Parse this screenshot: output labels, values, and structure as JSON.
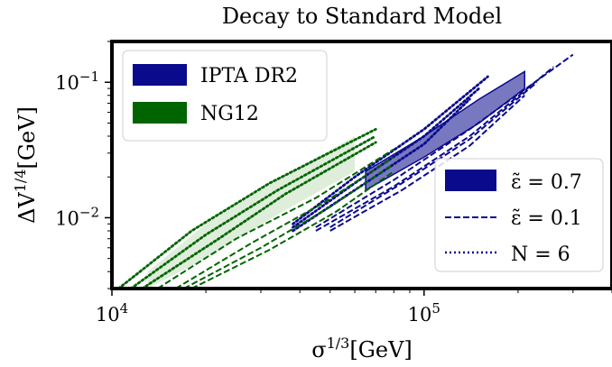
{
  "chart_data": {
    "type": "line",
    "title": "Decay to Standard Model",
    "xlabel": "σ^{1/3}[GeV]",
    "ylabel": "ΔV^{1/4}[GeV]",
    "xscale": "log",
    "yscale": "log",
    "xlim": [
      10000,
      400000
    ],
    "ylim": [
      0.003,
      0.2
    ],
    "grid": false,
    "x_ticks": [
      {
        "value": 10000,
        "base": "10",
        "exp": "4"
      },
      {
        "value": 100000,
        "base": "10",
        "exp": "5"
      }
    ],
    "y_ticks": [
      {
        "value": 0.1,
        "base": "10",
        "exp": "−1"
      },
      {
        "value": 0.01,
        "base": "10",
        "exp": "−2"
      }
    ],
    "colors": {
      "IPTA": "#0a0a8c",
      "NG12": "#006400"
    },
    "legend_datasets": {
      "placement": "top-left",
      "entries": [
        {
          "label": "IPTA DR2",
          "color": "#0a0a8c"
        },
        {
          "label": "NG12",
          "color": "#006400"
        }
      ]
    },
    "legend_styles": {
      "placement": "center-right",
      "entries": [
        {
          "label": "ε̃ = 0.7",
          "style": "filled"
        },
        {
          "label": "ε̃ = 0.1",
          "style": "dashed"
        },
        {
          "label": "N = 6",
          "style": "dotted"
        }
      ]
    },
    "series": [
      {
        "dataset": "IPTA DR2",
        "style": "dashed",
        "x": [
          45000,
          80000,
          140000,
          300000
        ],
        "y": [
          0.0085,
          0.019,
          0.045,
          0.16
        ]
      },
      {
        "dataset": "IPTA DR2",
        "style": "dashed",
        "x": [
          45000,
          80000,
          140000,
          260000
        ],
        "y": [
          0.008,
          0.017,
          0.04,
          0.13
        ]
      },
      {
        "dataset": "IPTA DR2",
        "style": "dashed",
        "x": [
          50000,
          85000,
          140000,
          230000
        ],
        "y": [
          0.0085,
          0.018,
          0.038,
          0.1
        ]
      },
      {
        "dataset": "IPTA DR2",
        "style": "dashed",
        "x": [
          50000,
          85000,
          140000,
          210000
        ],
        "y": [
          0.008,
          0.016,
          0.034,
          0.08
        ]
      },
      {
        "dataset": "IPTA DR2",
        "style": "dotted",
        "x": [
          38000,
          60000,
          100000,
          160000
        ],
        "y": [
          0.009,
          0.02,
          0.045,
          0.11
        ]
      },
      {
        "dataset": "IPTA DR2",
        "style": "dotted",
        "x": [
          38000,
          60000,
          100000,
          150000
        ],
        "y": [
          0.0085,
          0.018,
          0.04,
          0.09
        ]
      },
      {
        "dataset": "IPTA DR2",
        "style": "dotted",
        "x": [
          38000,
          60000,
          100000,
          140000
        ],
        "y": [
          0.008,
          0.016,
          0.035,
          0.075
        ]
      },
      {
        "dataset": "NG12",
        "style": "dashed",
        "x": [
          14000,
          25000,
          45000,
          80000
        ],
        "y": [
          0.003,
          0.007,
          0.014,
          0.032
        ]
      },
      {
        "dataset": "NG12",
        "style": "dashed",
        "x": [
          16000,
          28000,
          48000,
          80000
        ],
        "y": [
          0.003,
          0.0065,
          0.013,
          0.028
        ]
      },
      {
        "dataset": "NG12",
        "style": "dashed",
        "x": [
          17000,
          30000,
          50000,
          80000
        ],
        "y": [
          0.003,
          0.006,
          0.012,
          0.025
        ]
      },
      {
        "dataset": "NG12",
        "style": "dashed",
        "x": [
          18000,
          32000,
          52000,
          80000
        ],
        "y": [
          0.003,
          0.0058,
          0.011,
          0.022
        ]
      },
      {
        "dataset": "NG12",
        "style": "dotted",
        "x": [
          10500,
          18000,
          32000,
          70000
        ],
        "y": [
          0.003,
          0.008,
          0.018,
          0.045
        ]
      },
      {
        "dataset": "NG12",
        "style": "dotted",
        "x": [
          11500,
          20000,
          34000,
          70000
        ],
        "y": [
          0.003,
          0.0075,
          0.016,
          0.04
        ]
      },
      {
        "dataset": "NG12",
        "style": "dotted",
        "x": [
          12500,
          22000,
          36000,
          70000
        ],
        "y": [
          0.003,
          0.007,
          0.015,
          0.036
        ]
      }
    ],
    "regions": [
      {
        "dataset": "IPTA DR2",
        "style": "filled",
        "x": [
          65000,
          100000,
          150000,
          210000
        ],
        "y_upper": [
          0.022,
          0.04,
          0.075,
          0.12
        ],
        "y_lower": [
          0.016,
          0.028,
          0.05,
          0.09
        ]
      },
      {
        "dataset": "NG12",
        "style": "filled",
        "x": [
          13000,
          20000,
          35000,
          60000
        ],
        "y_upper": [
          0.004,
          0.009,
          0.02,
          0.04
        ],
        "y_lower": [
          0.003,
          0.005,
          0.011,
          0.022
        ]
      }
    ]
  }
}
